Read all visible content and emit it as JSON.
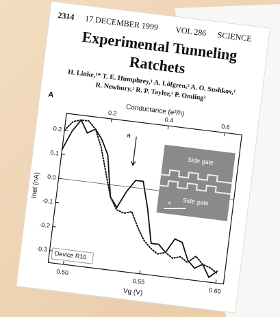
{
  "page": {
    "header": {
      "page_number": "2314",
      "date": "17 DECEMBER 1999",
      "volume": "VOL 286",
      "journal": "SCIENCE"
    },
    "title": [
      "Experimental Tunneling",
      "Ratchets"
    ],
    "authors": [
      "H. Linke,¹* T. E. Humphrey,¹ A. Löfgren,² A. O. Sushkov,¹",
      "R. Newbury,¹ R. P. Taylor,¹ P. Omling²"
    ],
    "figure": {
      "type": "line",
      "panel": "A",
      "x2_label": "Conductance (e²/h)",
      "x_label": "Vg (V)",
      "y_label": "Inet (nA)",
      "annotation": "a",
      "inset_labels": [
        "Side   gate",
        "Side   gate",
        "x"
      ],
      "device": "Device R10",
      "xlim": [
        0.49,
        0.605
      ],
      "xticks": [
        {
          "value": 0.5,
          "label": "0.50"
        },
        0.55,
        {
          "value": 0.6,
          "label": "0.60"
        }
      ],
      "x2lim": [
        0.04,
        0.66
      ],
      "x2ticks": [
        0.2,
        0.4,
        0.6
      ],
      "ylim": [
        -0.35,
        0.27
      ],
      "yticks": [
        0.2,
        0.1,
        {
          "value": 0,
          "label": "0.0"
        },
        -0.1,
        -0.2,
        -0.3
      ],
      "x": [
        0.49,
        0.495,
        0.5,
        0.505,
        0.51,
        0.515,
        0.52,
        0.525,
        0.53,
        0.535,
        0.54,
        0.545,
        0.55,
        0.555,
        0.56,
        0.565,
        0.57,
        0.575,
        0.58,
        0.585,
        0.59,
        0.595,
        0.6
      ],
      "series": [
        {
          "color": "#111111",
          "style": "solid",
          "values": [
            0.12,
            0.2,
            0.25,
            0.2,
            0.22,
            0.18,
            0.12,
            -0.05,
            -0.09,
            -0.02,
            0.03,
            0.03,
            -0.08,
            -0.22,
            -0.22,
            -0.25,
            -0.19,
            -0.2,
            -0.27,
            -0.3,
            -0.28,
            -0.33,
            -0.3
          ]
        },
        {
          "color": "#111111",
          "style": "dotted",
          "values": [
            0.2,
            0.24,
            0.25,
            0.25,
            0.22,
            0.15,
            0.05,
            -0.05,
            -0.1,
            -0.11,
            -0.1,
            -0.16,
            -0.21,
            -0.24,
            -0.26,
            -0.25,
            -0.27,
            -0.26,
            -0.28,
            -0.25,
            -0.28,
            -0.29,
            -0.31
          ]
        }
      ]
    }
  }
}
